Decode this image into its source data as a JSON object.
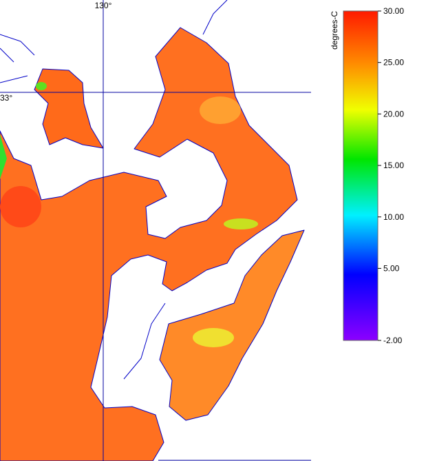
{
  "map": {
    "lon_label": "130°",
    "lat_label": "33°"
  },
  "colorbar": {
    "title": "degrees-C",
    "lim": [
      -2,
      30
    ],
    "ticks": [
      {
        "value": 30,
        "label": "30.00"
      },
      {
        "value": 25,
        "label": "25.00"
      },
      {
        "value": 20,
        "label": "20.00"
      },
      {
        "value": 15,
        "label": "15.00"
      },
      {
        "value": 10,
        "label": "10.00"
      },
      {
        "value": 5,
        "label": "5.00"
      },
      {
        "value": -2,
        "label": "-2.00"
      }
    ]
  }
}
